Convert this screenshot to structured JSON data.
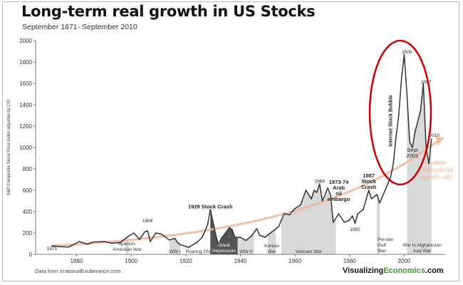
{
  "colors": {
    "line": "#333333",
    "trend": "#f2b494",
    "highlight_oval": "#cc0000",
    "shade_light": "#d9d9d9",
    "shade_dark": "#555555",
    "brand_green": "#3f9a2c"
  },
  "chart_data": {
    "type": "line",
    "title": "Long-term real growth in US Stocks",
    "subtitle": "September 1871- September 2010",
    "ylabel": "S&P Composite Stock Price Index adjusted by CPI",
    "xlabel": "",
    "xlim": [
      1865,
      2015
    ],
    "ylim": [
      0,
      2000
    ],
    "x_ticks": [
      1880,
      1900,
      1920,
      1940,
      1960,
      1980,
      2000
    ],
    "y_ticks": [
      0,
      200,
      400,
      600,
      800,
      1000,
      1200,
      1400,
      1600,
      1800,
      2000
    ],
    "grid": false,
    "series": [
      {
        "x": [
          1871,
          1874,
          1877,
          1879,
          1881,
          1884,
          1886,
          1890,
          1893,
          1896,
          1899,
          1901,
          1903,
          1905,
          1906,
          1907,
          1909,
          1911,
          1914,
          1916,
          1917,
          1918,
          1920,
          1921,
          1924,
          1926,
          1927,
          1928,
          1929,
          1930,
          1931,
          1932,
          1933,
          1934,
          1936,
          1937,
          1938,
          1940,
          1942,
          1944,
          1946,
          1947,
          1949,
          1951,
          1954,
          1956,
          1958,
          1960,
          1962,
          1964,
          1966,
          1967,
          1968,
          1969,
          1970,
          1972,
          1973,
          1974,
          1976,
          1978,
          1980,
          1981,
          1982,
          1983,
          1985,
          1987,
          1988,
          1990,
          1991,
          1993,
          1995,
          1996,
          1997,
          1998,
          1999,
          2000,
          2001,
          2002,
          2003,
          2004,
          2005,
          2006,
          2007,
          2008,
          2009,
          2010
        ],
        "y": [
          80,
          72,
          68,
          92,
          120,
          95,
          115,
          120,
          105,
          110,
          170,
          200,
          140,
          210,
          220,
          120,
          200,
          190,
          135,
          150,
          110,
          90,
          75,
          65,
          110,
          160,
          215,
          280,
          420,
          300,
          180,
          90,
          150,
          180,
          250,
          230,
          160,
          160,
          130,
          170,
          240,
          180,
          160,
          200,
          260,
          380,
          370,
          430,
          460,
          600,
          520,
          600,
          580,
          660,
          500,
          620,
          560,
          300,
          380,
          300,
          320,
          360,
          290,
          380,
          420,
          600,
          520,
          560,
          480,
          600,
          720,
          850,
          1100,
          1300,
          1650,
          1870,
          1500,
          1050,
          1000,
          1150,
          1250,
          1350,
          1600,
          1000,
          850,
          1080
        ]
      }
    ],
    "trendline_label": "Trendline (exponential growth rate)",
    "annotations": [
      {
        "text": "1871",
        "x": 1871,
        "y": 40
      },
      {
        "text": "1906",
        "x": 1906,
        "y": 300
      },
      {
        "text": "1929 Stock Crash",
        "x": 1929,
        "y": 430
      },
      {
        "text": "1969",
        "x": 1969,
        "y": 670
      },
      {
        "text": "1973-74 Arab oil embargo",
        "x": 1976,
        "y": 660
      },
      {
        "text": "1982",
        "x": 1982,
        "y": 220
      },
      {
        "text": "1987 Stock Crash",
        "x": 1987,
        "y": 720
      },
      {
        "text": "2000",
        "x": 2001,
        "y": 1880
      },
      {
        "text": "2007",
        "x": 2008,
        "y": 1600
      },
      {
        "text": "2010",
        "x": 2011,
        "y": 1100
      },
      {
        "text": "Internet Stock Bubble",
        "x": 1995.5,
        "y": 1250
      },
      {
        "text": "Sept 2001",
        "x": 2003,
        "y": 960
      }
    ],
    "shaded_periods": [
      {
        "label": "Spanish-American War",
        "x0": 1898,
        "x1": 1899,
        "tone": "light"
      },
      {
        "label": "WW I",
        "x0": 1914,
        "x1": 1918,
        "tone": "light"
      },
      {
        "label": "Roaring 20s",
        "x0": 1920,
        "x1": 1929,
        "tone": "none"
      },
      {
        "label": "Great Depression",
        "x0": 1929,
        "x1": 1939,
        "tone": "dark"
      },
      {
        "label": "WW II",
        "x0": 1939,
        "x1": 1945,
        "tone": "light"
      },
      {
        "label": "Korean War",
        "x0": 1950,
        "x1": 1953,
        "tone": "light"
      },
      {
        "label": "Vietnam War",
        "x0": 1955,
        "x1": 1975,
        "tone": "light"
      },
      {
        "label": "Persian Gulf War",
        "x0": 1990,
        "x1": 1991,
        "tone": "light"
      },
      {
        "label": "War in Afghanistan Iraq War",
        "x0": 2001,
        "x1": 2010,
        "tone": "light"
      }
    ]
  },
  "footer": {
    "source": "Data from IrrationalExuberance.com",
    "brand_part1": "Visualizing",
    "brand_part2": "Economics",
    "brand_part3": ".com"
  }
}
